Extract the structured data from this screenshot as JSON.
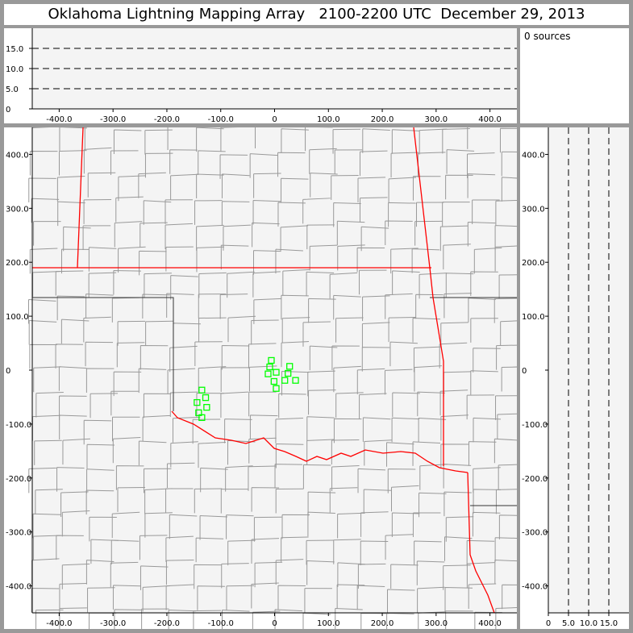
{
  "title": "Oklahoma Lightning Mapping Array   2100-2200 UTC  December 29, 2013",
  "source_count": "0 sources",
  "colors": {
    "station": "#00ff00",
    "state_border": "#ff0000",
    "county": "#999999",
    "plot_bg": "#f4f4f4"
  },
  "chart_data": [
    {
      "type": "line",
      "panel": "altitude-vs-east-west",
      "xlim": [
        -450,
        450
      ],
      "ylim": [
        0,
        20
      ],
      "x_ticks": [
        "-400.0",
        "-300.0",
        "-200.0",
        "-100.0",
        "0",
        "100.0",
        "200.0",
        "300.0",
        "400.0"
      ],
      "x_tick_values": [
        -400,
        -300,
        -200,
        -100,
        0,
        100,
        200,
        300,
        400
      ],
      "y_ticks": [
        "0",
        "5.0",
        "10.0",
        "15.0"
      ],
      "y_tick_values": [
        0,
        5,
        10,
        15
      ],
      "grid": "dashed horizontal at 5, 10, 15",
      "series": []
    },
    {
      "type": "scatter",
      "panel": "plan-view-map",
      "xlim": [
        -450,
        450
      ],
      "ylim": [
        -450,
        450
      ],
      "x_ticks": [
        "-400.0",
        "-300.0",
        "-200.0",
        "-100.0",
        "0",
        "100.0",
        "200.0",
        "300.0",
        "400.0"
      ],
      "x_tick_values": [
        -400,
        -300,
        -200,
        -100,
        0,
        100,
        200,
        300,
        400
      ],
      "y_ticks": [
        "400.0",
        "300.0",
        "200.0",
        "100.0",
        "0",
        "-100.0",
        "-200.0",
        "-300.0",
        "-400.0"
      ],
      "y_tick_values": [
        400,
        300,
        200,
        100,
        0,
        -100,
        -200,
        -300,
        -400
      ],
      "stations": [
        [
          -6,
          18
        ],
        [
          -9,
          6
        ],
        [
          28,
          7
        ],
        [
          -12,
          -7
        ],
        [
          3,
          -4
        ],
        [
          25,
          -6
        ],
        [
          -1,
          -21
        ],
        [
          19,
          -19
        ],
        [
          39,
          -19
        ],
        [
          3,
          -34
        ],
        [
          -135,
          -37
        ],
        [
          -128,
          -51
        ],
        [
          -144,
          -60
        ],
        [
          -126,
          -69
        ],
        [
          -141,
          -79
        ],
        [
          -135,
          -88
        ]
      ]
    },
    {
      "type": "line",
      "panel": "altitude-vs-north-south",
      "xlim": [
        0,
        20
      ],
      "ylim": [
        -450,
        450
      ],
      "x_ticks": [
        "0",
        "5.0",
        "10.0",
        "15.0"
      ],
      "x_tick_values": [
        0,
        5,
        10,
        15
      ],
      "y_ticks": [
        "400.0",
        "300.0",
        "200.0",
        "100.0",
        "0",
        "-100.0",
        "-200.0",
        "-300.0",
        "-400.0"
      ],
      "y_tick_values": [
        400,
        300,
        200,
        100,
        0,
        -100,
        -200,
        -300,
        -400
      ],
      "grid": "dashed vertical at 5, 10, 15",
      "series": []
    }
  ]
}
